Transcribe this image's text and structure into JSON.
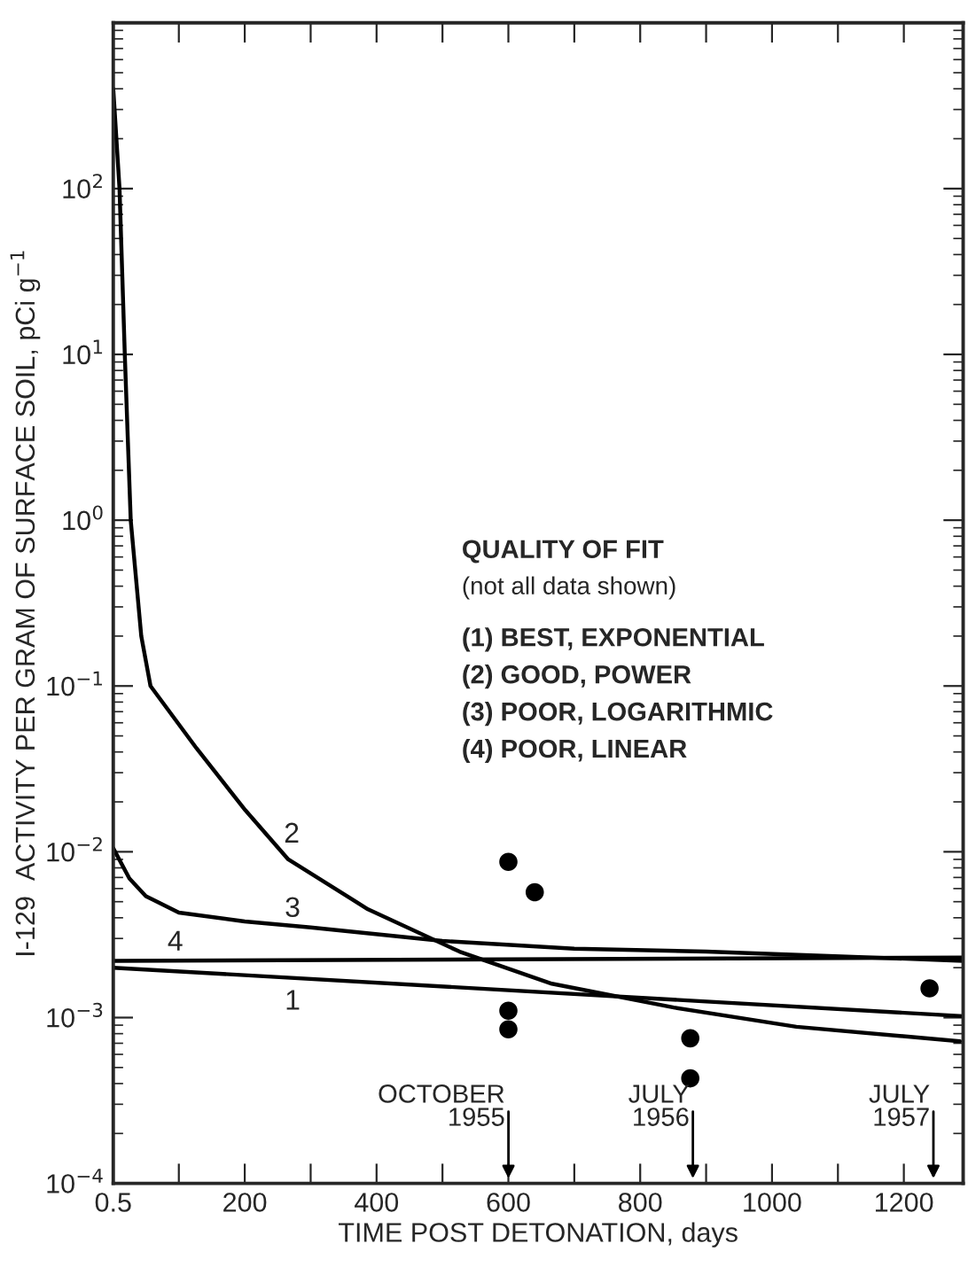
{
  "chart_data": {
    "type": "line",
    "xlabel": "TIME POST DETONATION, days",
    "ylabel": "I-129  ACTIVITY PER GRAM OF SURFACE SOIL, pCi g$^{−1}$",
    "log": "y",
    "grid": false,
    "legend": false,
    "marker": "none",
    "line_style": "solid",
    "xlim": [
      0.5,
      1290
    ],
    "ylim": [
      0.0001,
      1000
    ],
    "xticks": [
      0.5,
      {
        "value": 100,
        "label": null
      },
      200,
      {
        "value": 300,
        "label": null
      },
      400,
      {
        "value": 500,
        "label": null
      },
      600,
      {
        "value": 700,
        "label": null
      },
      800,
      {
        "value": 900,
        "label": null
      },
      1000,
      {
        "value": 1100,
        "label": null
      },
      1200
    ],
    "yticks": [
      {
        "value": 0.0001,
        "label": "10$^{−4}$"
      },
      {
        "value": 0.001,
        "label": "10$^{−3}$"
      },
      {
        "value": 0.01,
        "label": "10$^{−2}$"
      },
      {
        "value": 0.1,
        "label": "10$^{−1}$"
      },
      {
        "value": 1,
        "label": "10$^{0}$"
      },
      {
        "value": 10,
        "label": "10$^{1}$"
      },
      {
        "value": 100,
        "label": "10$^{2}$"
      }
    ],
    "series": [
      {
        "color": "#000000",
        "x": [
          0.5,
          1290
        ],
        "values": [
          0.002,
          0.00102
        ]
      },
      {
        "color": "#000000",
        "x": [
          0.5,
          10,
          18,
          27,
          43,
          57,
          127,
          201,
          266,
          387,
          526,
          666,
          851,
          1037,
          1285
        ],
        "values": [
          400,
          100,
          10,
          1,
          0.2,
          0.1,
          0.042,
          0.0178,
          0.009,
          0.0045,
          0.0025,
          0.0016,
          0.00115,
          0.00088,
          0.00072
        ]
      },
      {
        "color": "#000000",
        "x": [
          0.5,
          25,
          50,
          100,
          200,
          300,
          500,
          700,
          900,
          1290
        ],
        "values": [
          0.0105,
          0.0069,
          0.0054,
          0.0043,
          0.0038,
          0.0035,
          0.0029,
          0.0026,
          0.0025,
          0.0022
        ]
      },
      {
        "color": "#000000",
        "x": [
          0.5,
          1290
        ],
        "values": [
          0.0022,
          0.0023
        ]
      },
      {
        "type": "scatter",
        "marker": "circle",
        "color": "#000000",
        "x": [
          600,
          640,
          600,
          600,
          876,
          876,
          1239
        ],
        "values": [
          0.0087,
          0.0057,
          0.0011,
          0.00085,
          0.00075,
          0.00043,
          0.0015
        ]
      }
    ],
    "annotations": [
      "QUALITY OF FIT",
      "(not all data shown)",
      "(1) BEST, EXPONENTIAL",
      "(2) GOOD, POWER",
      "(3) POOR, LOGARITHMIC",
      "(4) POOR, LINEAR",
      "1",
      "2",
      "3",
      "4",
      "OCTOBER\n1955",
      "JULY\n1956",
      "JULY\n1957"
    ]
  }
}
